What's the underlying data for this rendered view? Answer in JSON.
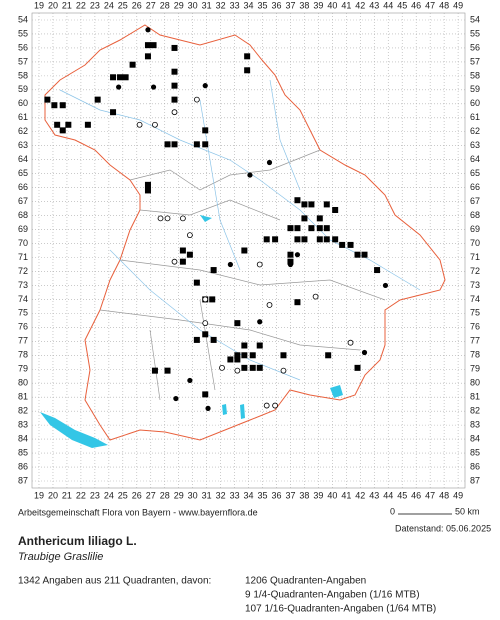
{
  "grid": {
    "columns": [
      19,
      20,
      21,
      22,
      23,
      24,
      25,
      26,
      27,
      28,
      29,
      30,
      31,
      32,
      33,
      34,
      35,
      36,
      37,
      38,
      39,
      40,
      41,
      42,
      43,
      44,
      45,
      46,
      47,
      48,
      49
    ],
    "rows": [
      54,
      55,
      56,
      57,
      58,
      59,
      60,
      61,
      62,
      63,
      64,
      65,
      66,
      67,
      68,
      69,
      70,
      71,
      72,
      73,
      74,
      75,
      76,
      77,
      78,
      79,
      80,
      81,
      82,
      83,
      84,
      85,
      86,
      87
    ]
  },
  "markers": {
    "squares": [
      [
        26.8,
        55.8
      ],
      [
        27.2,
        55.8
      ],
      [
        28.7,
        56
      ],
      [
        33.9,
        56.6
      ],
      [
        33.9,
        57.6
      ],
      [
        25.7,
        57.2
      ],
      [
        26.8,
        56.6
      ],
      [
        24.3,
        58.1
      ],
      [
        24.8,
        58.1
      ],
      [
        25.2,
        58.1
      ],
      [
        28.7,
        57.7
      ],
      [
        19.6,
        59.7
      ],
      [
        20.1,
        60.1
      ],
      [
        20.7,
        60.1
      ],
      [
        28.7,
        58.7
      ],
      [
        28.7,
        59.7
      ],
      [
        23.2,
        59.7
      ],
      [
        24.3,
        60.6
      ],
      [
        20.3,
        61.5
      ],
      [
        20.7,
        61.9
      ],
      [
        21.1,
        61.5
      ],
      [
        22.5,
        61.5
      ],
      [
        28.2,
        62.9
      ],
      [
        28.7,
        62.9
      ],
      [
        30.3,
        62.9
      ],
      [
        30.9,
        62.9
      ],
      [
        30.9,
        61.9
      ],
      [
        26.8,
        65.8
      ],
      [
        26.8,
        66.2
      ],
      [
        37.5,
        66.9
      ],
      [
        38,
        67.2
      ],
      [
        38.5,
        67.2
      ],
      [
        38,
        68.2
      ],
      [
        37.5,
        68.9
      ],
      [
        38.5,
        68.9
      ],
      [
        39.1,
        68.9
      ],
      [
        39.6,
        68.9
      ],
      [
        37,
        68.9
      ],
      [
        37.5,
        69.7
      ],
      [
        38,
        69.7
      ],
      [
        39.1,
        69.7
      ],
      [
        39.6,
        69.7
      ],
      [
        40.2,
        69.7
      ],
      [
        40.7,
        70.1
      ],
      [
        41.3,
        70.1
      ],
      [
        41.8,
        70.8
      ],
      [
        42.3,
        70.8
      ],
      [
        39.1,
        68.2
      ],
      [
        40.2,
        67.6
      ],
      [
        39.6,
        67.2
      ],
      [
        29.3,
        70.5
      ],
      [
        29.8,
        70.8
      ],
      [
        29.3,
        71.3
      ],
      [
        35.3,
        69.7
      ],
      [
        35.9,
        69.7
      ],
      [
        33.7,
        70.5
      ],
      [
        37,
        70.8
      ],
      [
        37,
        71.3
      ],
      [
        43.2,
        71.9
      ],
      [
        31.5,
        71.9
      ],
      [
        30.3,
        72.8
      ],
      [
        30.9,
        74
      ],
      [
        31.4,
        74
      ],
      [
        37.5,
        74.2
      ],
      [
        33.2,
        75.7
      ],
      [
        30.9,
        76.5
      ],
      [
        30.3,
        76.9
      ],
      [
        31.5,
        76.9
      ],
      [
        33.7,
        77.3
      ],
      [
        34.8,
        77.3
      ],
      [
        34.3,
        78
      ],
      [
        33.2,
        78
      ],
      [
        33.7,
        78
      ],
      [
        32.7,
        78.3
      ],
      [
        33.2,
        78.3
      ],
      [
        33.7,
        78.9
      ],
      [
        34.3,
        78.9
      ],
      [
        34.8,
        78.9
      ],
      [
        36.5,
        78
      ],
      [
        39.7,
        78
      ],
      [
        41.8,
        78.9
      ],
      [
        27.3,
        79.1
      ],
      [
        28.2,
        79.1
      ],
      [
        30.9,
        80.8
      ]
    ],
    "dots": [
      [
        26.8,
        54.7
      ],
      [
        24.7,
        58.8
      ],
      [
        27.2,
        58.8
      ],
      [
        30.9,
        58.7
      ],
      [
        35.5,
        64.2
      ],
      [
        34.1,
        65.1
      ],
      [
        32.7,
        71.5
      ],
      [
        37,
        71.5
      ],
      [
        37.5,
        70.8
      ],
      [
        34.8,
        75.6
      ],
      [
        29.8,
        79.8
      ],
      [
        28.8,
        81.1
      ],
      [
        31.1,
        81.8
      ],
      [
        43.8,
        73
      ],
      [
        42.3,
        77.8
      ]
    ],
    "circles": [
      [
        26.2,
        61.5
      ],
      [
        27.3,
        61.5
      ],
      [
        28.7,
        60.6
      ],
      [
        30.3,
        59.7
      ],
      [
        27.7,
        68.2
      ],
      [
        28.2,
        68.2
      ],
      [
        29.3,
        68.2
      ],
      [
        29.8,
        69.4
      ],
      [
        28.7,
        71.3
      ],
      [
        30.9,
        74
      ],
      [
        34.8,
        71.5
      ],
      [
        35.5,
        74.4
      ],
      [
        30.9,
        75.7
      ],
      [
        38.8,
        73.8
      ],
      [
        41.3,
        77.1
      ],
      [
        33.2,
        79.1
      ],
      [
        36.5,
        79.1
      ],
      [
        35.3,
        81.6
      ],
      [
        35.9,
        81.6
      ],
      [
        32.1,
        78.9
      ]
    ]
  },
  "footer": {
    "credit": "Arbeitsgemeinschaft Flora von Bayern - www.bayernflora.de",
    "scale_start": "0",
    "scale_end": "50 km",
    "date": "Datenstand: 05.06.2025",
    "title": "Anthericum liliago L.",
    "subtitle": "Traubige Graslilie",
    "summary": "1342 Angaben aus 211 Quadranten, davon:",
    "stats": [
      "1206 Quadranten-Angaben",
      "9 1/4-Quadranten-Angaben (1/16 MTB)",
      "107 1/16-Quadranten-Angaben (1/64 MTB)"
    ]
  }
}
